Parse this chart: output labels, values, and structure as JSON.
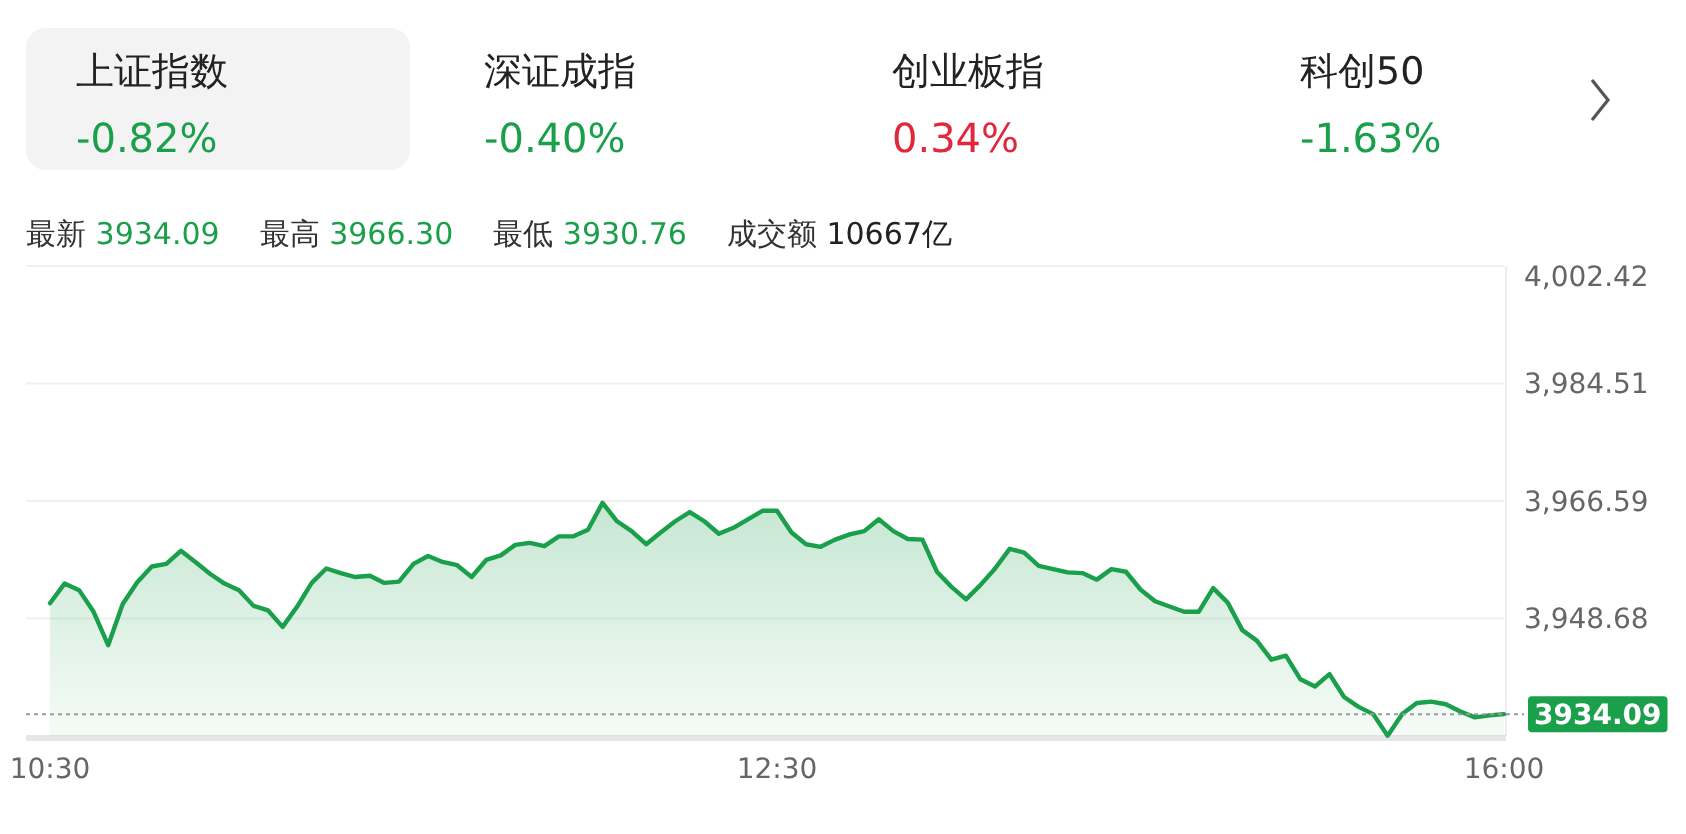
{
  "chart_data": [
    {
      "type": "other",
      "categories": [
        "上证指数",
        "深证成指",
        "创业板指",
        "科创50"
      ],
      "value_labels": [
        "-0.82%",
        "-0.40%",
        "0.34%",
        "-1.63%"
      ],
      "colors": [
        "#1a9f4b",
        "#1a9f4b",
        "#e0283c",
        "#1a9f4b"
      ]
    },
    {
      "type": "area",
      "color": "#1a9f4b",
      "annotations": [
        "最新 3934.09",
        "最高 3966.30",
        "最低 3930.76",
        "成交额 10667亿"
      ],
      "categories": [
        "10:30",
        null,
        null,
        null,
        null,
        null,
        null,
        null,
        null,
        null,
        null,
        null,
        null,
        null,
        null,
        null,
        null,
        null,
        null,
        null,
        null,
        null,
        null,
        null,
        null,
        null,
        null,
        null,
        null,
        null,
        null,
        null,
        null,
        null,
        null,
        null,
        null,
        null,
        null,
        null,
        null,
        null,
        null,
        null,
        null,
        null,
        null,
        null,
        null,
        null,
        "12:30",
        null,
        null,
        null,
        null,
        null,
        null,
        null,
        null,
        null,
        null,
        null,
        null,
        null,
        null,
        null,
        null,
        null,
        null,
        null,
        null,
        null,
        null,
        null,
        null,
        null,
        null,
        null,
        null,
        null,
        null,
        null,
        null,
        null,
        null,
        null,
        null,
        null,
        null,
        null,
        null,
        null,
        null,
        null,
        null,
        null,
        null,
        null,
        null,
        null,
        "16:00"
      ],
      "values": [
        3951.0,
        3954.0,
        3953.0,
        3949.7,
        3944.6,
        3950.9,
        3954.2,
        3956.6,
        3957.0,
        3959.0,
        3957.3,
        3955.5,
        3954.0,
        3953.0,
        3950.6,
        3949.9,
        3947.4,
        3950.5,
        3954.1,
        3956.3,
        3955.6,
        3955.0,
        3955.2,
        3954.1,
        3954.3,
        3957.0,
        3958.2,
        3957.3,
        3956.8,
        3955.0,
        3957.6,
        3958.3,
        3959.9,
        3960.2,
        3959.7,
        3961.2,
        3961.2,
        3962.2,
        3966.3,
        3963.5,
        3962.0,
        3960.0,
        3961.8,
        3963.5,
        3964.9,
        3963.5,
        3961.6,
        3962.5,
        3963.8,
        3965.1,
        3965.1,
        3961.8,
        3960.0,
        3959.6,
        3960.7,
        3961.5,
        3962.0,
        3963.8,
        3962.0,
        3960.8,
        3960.7,
        3955.8,
        3953.5,
        3951.6,
        3953.8,
        3956.3,
        3959.3,
        3958.7,
        3956.7,
        3956.2,
        3955.7,
        3955.6,
        3954.6,
        3956.2,
        3955.8,
        3953.1,
        3951.3,
        3950.5,
        3949.7,
        3949.7,
        3953.3,
        3951.1,
        3946.9,
        3945.3,
        3942.4,
        3943.0,
        3939.4,
        3938.3,
        3940.2,
        3936.7,
        3935.2,
        3934.1,
        3930.8,
        3934.1,
        3935.8,
        3936.0,
        3935.6,
        3934.5,
        3933.6,
        3933.9,
        3934.1
      ],
      "ylim": [
        3930.76,
        4002.42
      ],
      "yticks": [
        {
          "value": 4002.42,
          "label": "4,002.42"
        },
        {
          "value": 3984.51,
          "label": "3,984.51"
        },
        {
          "value": 3966.59,
          "label": "3,966.59"
        },
        {
          "value": 3948.68,
          "label": "3,948.68"
        }
      ],
      "grid": "y",
      "ref_lines": [
        {
          "axis": "y",
          "value": 3934.09,
          "label": "3934.09",
          "color": "#9a9a9a",
          "line_style": "dotted"
        }
      ]
    }
  ]
}
